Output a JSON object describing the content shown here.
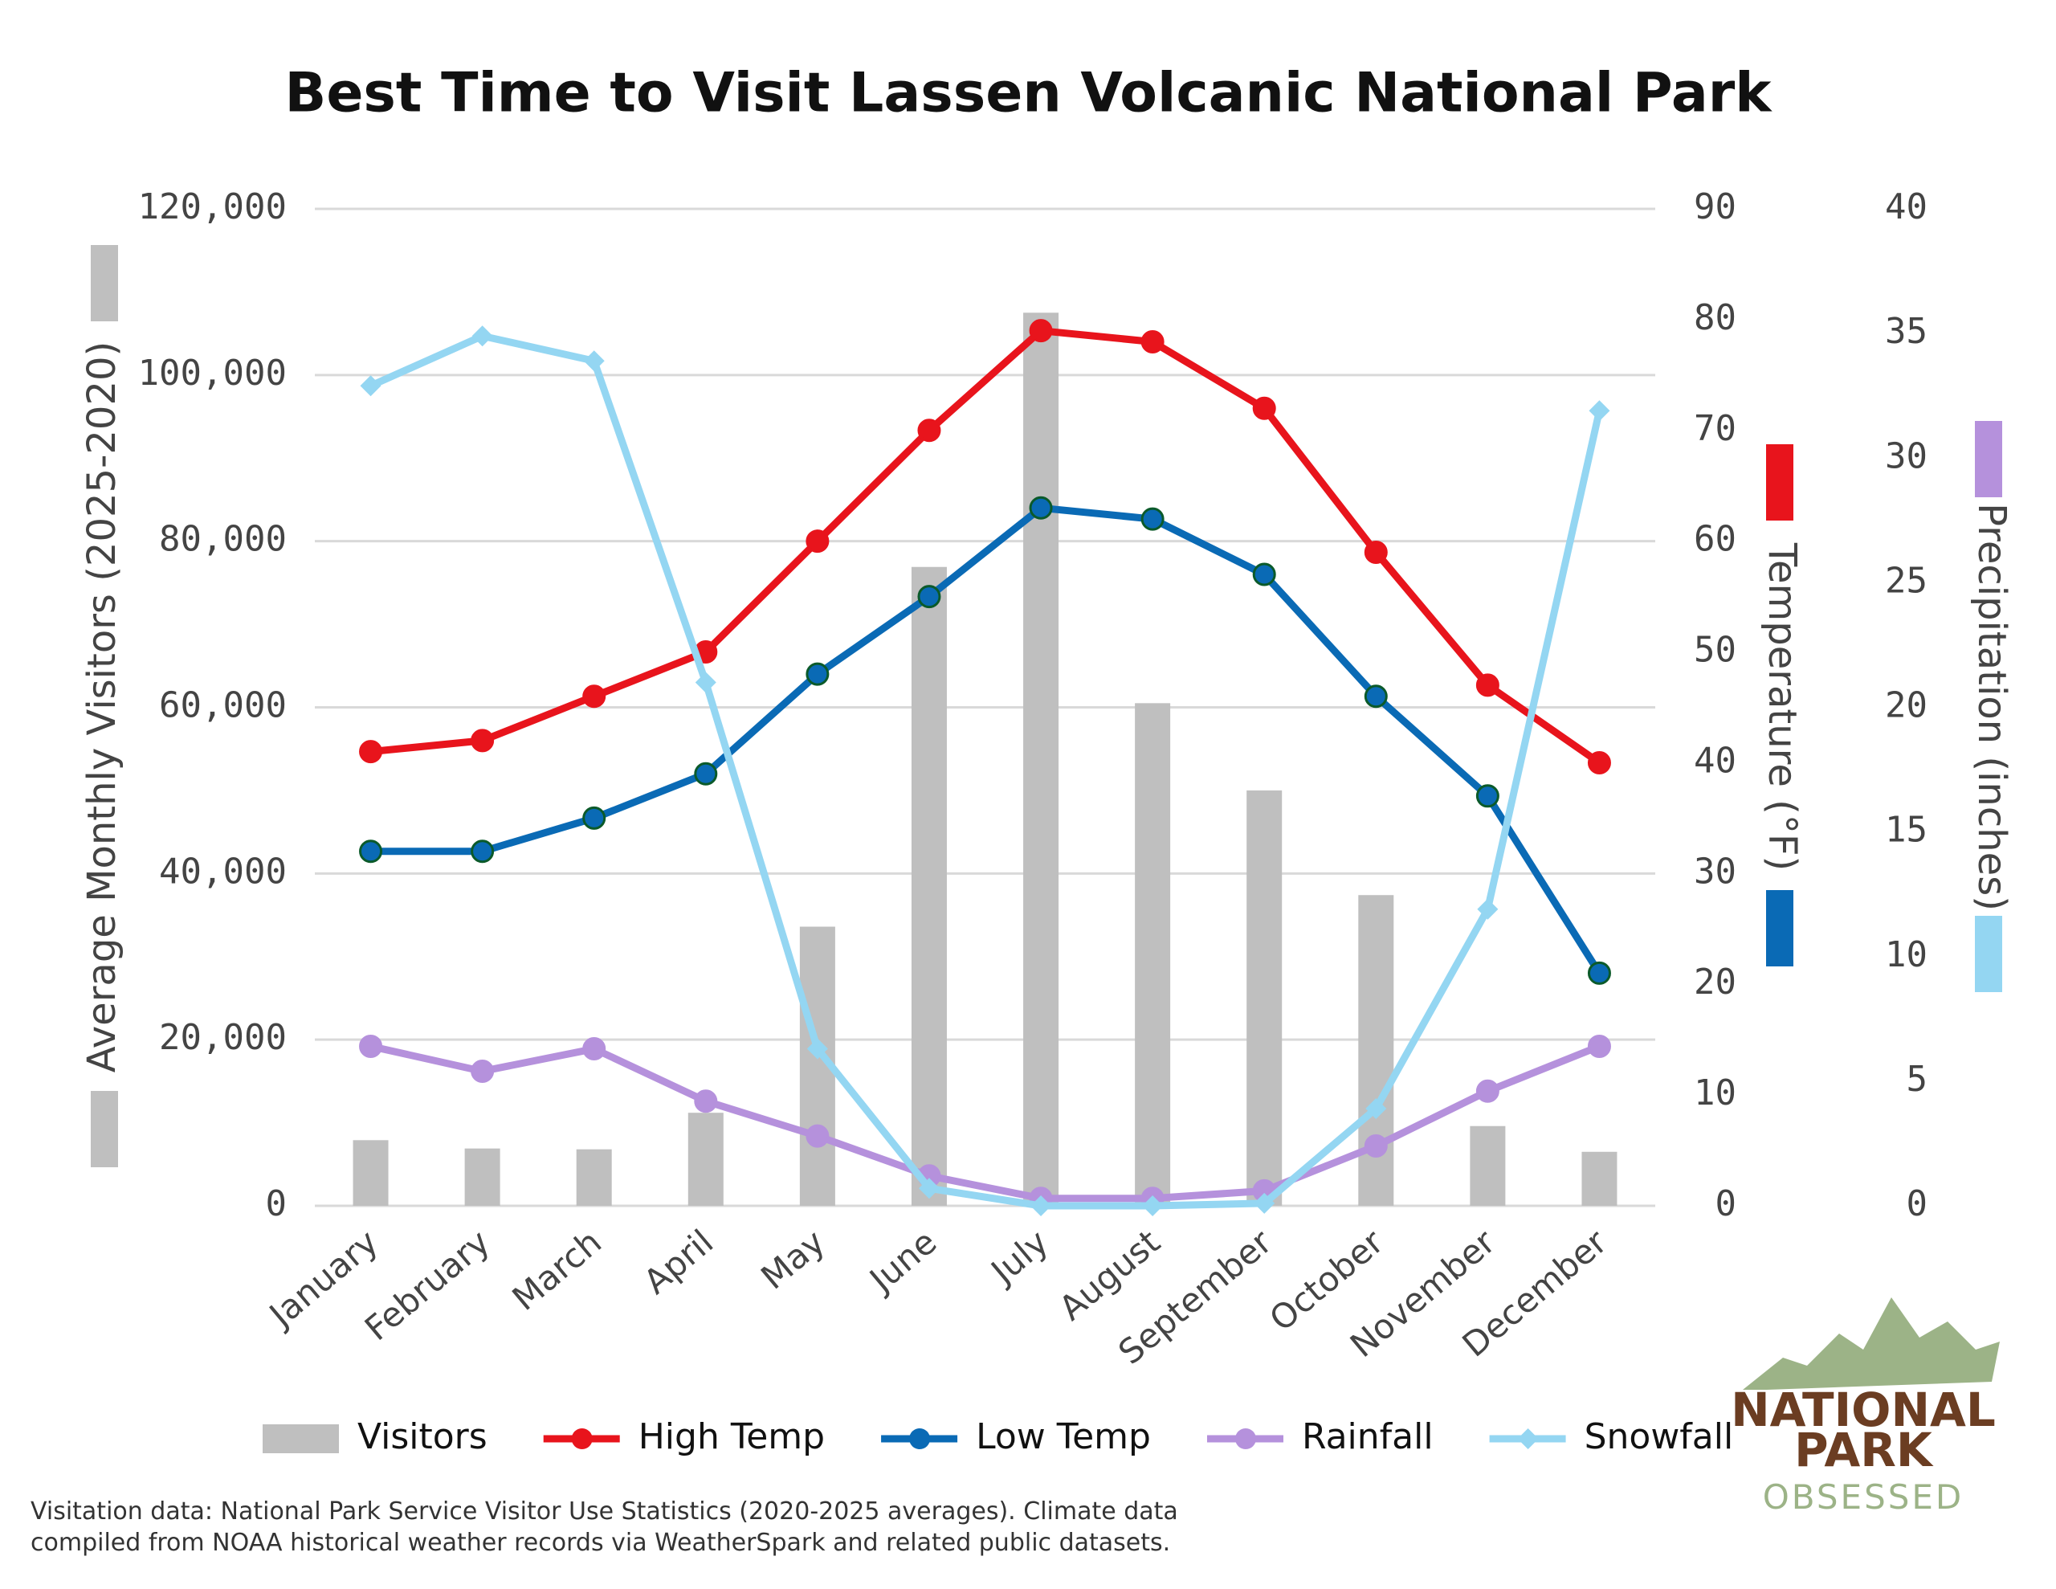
{
  "chart_data": {
    "type": "combo",
    "title": "Best Time to Visit Lassen Volcanic National Park",
    "categories": [
      "January",
      "February",
      "March",
      "April",
      "May",
      "June",
      "July",
      "August",
      "September",
      "October",
      "November",
      "December"
    ],
    "series": [
      {
        "name": "Visitors",
        "type": "bar",
        "axis": "y",
        "color": "#bfbfbf",
        "values": [
          7900,
          6900,
          6800,
          11200,
          33600,
          76900,
          107500,
          60500,
          50000,
          37400,
          9600,
          6500
        ]
      },
      {
        "name": "High Temp",
        "type": "line",
        "axis": "y2",
        "marker": "circle",
        "color": "#e8141c",
        "values": [
          41,
          42,
          46,
          50,
          60,
          70,
          79,
          78,
          72,
          59,
          47,
          40
        ]
      },
      {
        "name": "Low Temp",
        "type": "line",
        "axis": "y2",
        "marker": "circle",
        "color": "#0a6ab5",
        "values": [
          32,
          32,
          35,
          39,
          48,
          55,
          63,
          62,
          57,
          46,
          37,
          21
        ]
      },
      {
        "name": "Rainfall",
        "type": "line",
        "axis": "y3",
        "marker": "circle",
        "color": "#b591dc",
        "values": [
          6.4,
          5.4,
          6.3,
          4.2,
          2.8,
          1.2,
          0.3,
          0.3,
          0.6,
          2.4,
          4.6,
          6.4
        ]
      },
      {
        "name": "Snowfall",
        "type": "line",
        "axis": "y3",
        "marker": "diamond",
        "color": "#94d6f2",
        "values": [
          32.9,
          34.9,
          33.9,
          21,
          6.3,
          0.7,
          0,
          0,
          0.1,
          3.9,
          11.9,
          31.9
        ]
      }
    ],
    "ylabel": "Average Monthly Visitors (2025-2020)",
    "y2label": "Temperature (°F)",
    "y3label": "Precipitation (inches)",
    "ylim": [
      0,
      120000
    ],
    "yticks": [
      0,
      {
        "value": 20000,
        "label": "20,000"
      },
      {
        "value": 40000,
        "label": "40,000"
      },
      {
        "value": 60000,
        "label": "60,000"
      },
      {
        "value": 80000,
        "label": "80,000"
      },
      {
        "value": 100000,
        "label": "100,000"
      },
      {
        "value": 120000,
        "label": "120,000"
      }
    ],
    "y2lim": [
      0,
      90
    ],
    "y2ticks": [
      0,
      10,
      20,
      30,
      40,
      50,
      60,
      70,
      80,
      90
    ],
    "y3lim": [
      0,
      40
    ],
    "y3ticks": [
      0,
      5,
      10,
      15,
      20,
      25,
      30,
      35,
      40
    ],
    "grid": true,
    "legend": "bottom",
    "note": [
      "Visitation data: National Park Service Visitor Use Statistics (2020-2025 averages). Climate data",
      "compiled from NOAA historical weather records via WeatherSpark and related public datasets."
    ]
  },
  "logo": {
    "line1": "NATIONAL",
    "line2": "PARK",
    "line3": "OBSESSED"
  }
}
